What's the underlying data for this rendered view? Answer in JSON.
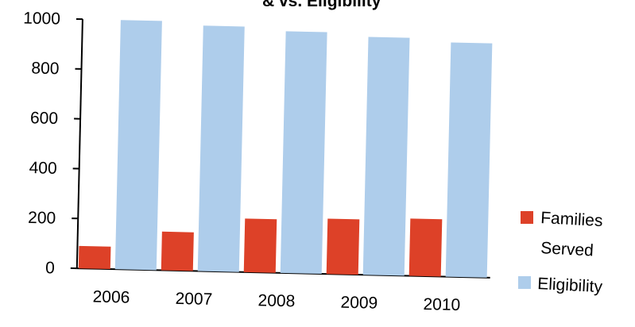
{
  "chart_data": {
    "type": "bar",
    "title": "...",
    "title_visible_fragment": "& vs. Eligibility",
    "categories": [
      "2006",
      "2007",
      "2008",
      "2009",
      "2010"
    ],
    "series": [
      {
        "name": "Families Served",
        "color": "#dd4128",
        "values": [
          90,
          155,
          215,
          222,
          230
        ]
      },
      {
        "name": "Eligibility",
        "color": "#aecdeb",
        "values": [
          1000,
          985,
          970,
          955,
          940
        ]
      }
    ],
    "ylim": [
      0,
      1000
    ],
    "yticks": [
      0,
      200,
      400,
      600,
      800,
      1000
    ],
    "legend_position": "right",
    "grid": false
  },
  "legend": {
    "families_line1": "Families",
    "families_line2": "Served",
    "eligibility": "Eligibility"
  }
}
